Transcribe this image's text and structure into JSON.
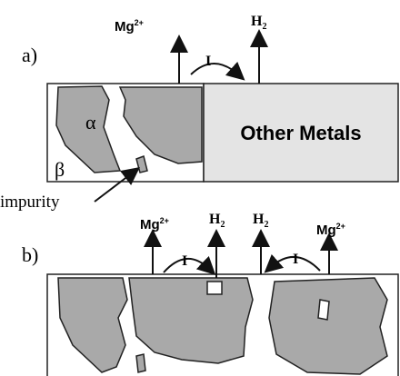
{
  "panel_a": {
    "label": "a)",
    "cation": {
      "base": "Mg",
      "sup": "2+"
    },
    "gas": {
      "base": "H",
      "sub": "2"
    },
    "current": "I",
    "other_metals": "Other Metals",
    "alpha": "α",
    "beta": "β",
    "impurity": "impurity"
  },
  "panel_b": {
    "label": "b)",
    "cation_left": {
      "base": "Mg",
      "sup": "2+"
    },
    "gas_left": {
      "base": "H",
      "sub": "2"
    },
    "gas_right": {
      "base": "H",
      "sub": "2"
    },
    "cation_right": {
      "base": "Mg",
      "sup": "2+"
    },
    "current_left": "I",
    "current_right": "I"
  }
}
